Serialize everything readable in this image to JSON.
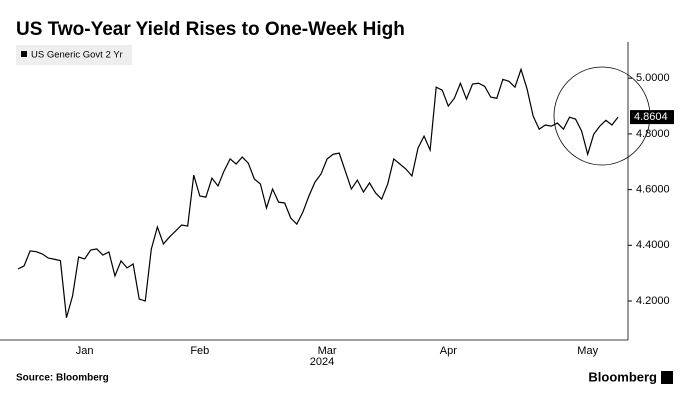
{
  "chart_data": {
    "type": "line",
    "title": "US Two-Year Yield Rises to One-Week High",
    "source": "Source: Bloomberg",
    "brand": "Bloomberg",
    "x_axis_label": "2024",
    "categories": [
      null,
      null,
      null,
      null,
      null,
      null,
      null,
      null,
      null,
      null,
      null,
      "Jan",
      null,
      null,
      null,
      null,
      null,
      null,
      null,
      null,
      null,
      null,
      null,
      null,
      null,
      null,
      null,
      null,
      null,
      null,
      "Feb",
      null,
      null,
      null,
      null,
      null,
      null,
      null,
      null,
      null,
      null,
      null,
      null,
      null,
      null,
      null,
      null,
      null,
      null,
      null,
      null,
      "Mar",
      null,
      null,
      null,
      null,
      null,
      null,
      null,
      null,
      null,
      null,
      null,
      null,
      null,
      null,
      null,
      null,
      null,
      null,
      null,
      "Apr",
      null,
      null,
      null,
      null,
      null,
      null,
      null,
      null,
      null,
      null,
      null,
      null,
      null,
      null,
      null,
      null,
      null,
      null,
      null,
      null,
      null,
      null,
      "May",
      null,
      null,
      null,
      null,
      null
    ],
    "series": [
      {
        "name": "US Generic Govt 2 Yr",
        "color": "#000000",
        "values": [
          4.315,
          4.326,
          4.38,
          4.377,
          4.369,
          4.354,
          4.35,
          4.345,
          4.14,
          4.218,
          4.358,
          4.351,
          4.383,
          4.387,
          4.365,
          4.376,
          4.29,
          4.344,
          4.319,
          4.333,
          4.207,
          4.2,
          4.387,
          4.466,
          4.405,
          4.43,
          4.451,
          4.473,
          4.469,
          4.652,
          4.577,
          4.573,
          4.641,
          4.613,
          4.667,
          4.71,
          4.692,
          4.717,
          4.695,
          4.638,
          4.62,
          4.534,
          4.602,
          4.555,
          4.552,
          4.498,
          4.476,
          4.519,
          4.577,
          4.627,
          4.656,
          4.71,
          4.727,
          4.731,
          4.667,
          4.602,
          4.634,
          4.591,
          4.624,
          4.588,
          4.566,
          4.62,
          4.71,
          4.692,
          4.674,
          4.649,
          4.749,
          4.792,
          4.742,
          4.968,
          4.957,
          4.9,
          4.928,
          4.982,
          4.925,
          4.979,
          4.982,
          4.971,
          4.932,
          4.928,
          4.996,
          4.989,
          4.968,
          5.032,
          4.961,
          4.864,
          4.817,
          4.832,
          4.828,
          4.839,
          4.817,
          4.86,
          4.853,
          4.81,
          4.727,
          4.799,
          4.828,
          4.849,
          4.832,
          4.8604
        ]
      }
    ],
    "ylim": [
      4.06,
      5.13
    ],
    "yticks": [
      {
        "value": 4.2,
        "label": "4.2000"
      },
      {
        "value": 4.4,
        "label": "4.4000"
      },
      {
        "value": 4.6,
        "label": "4.6000"
      },
      {
        "value": 4.8,
        "label": "4.8000"
      },
      {
        "value": 5.0,
        "label": "5.0000"
      }
    ],
    "y_axis_side": "right",
    "grid": false,
    "legend": "top-left"
  }
}
